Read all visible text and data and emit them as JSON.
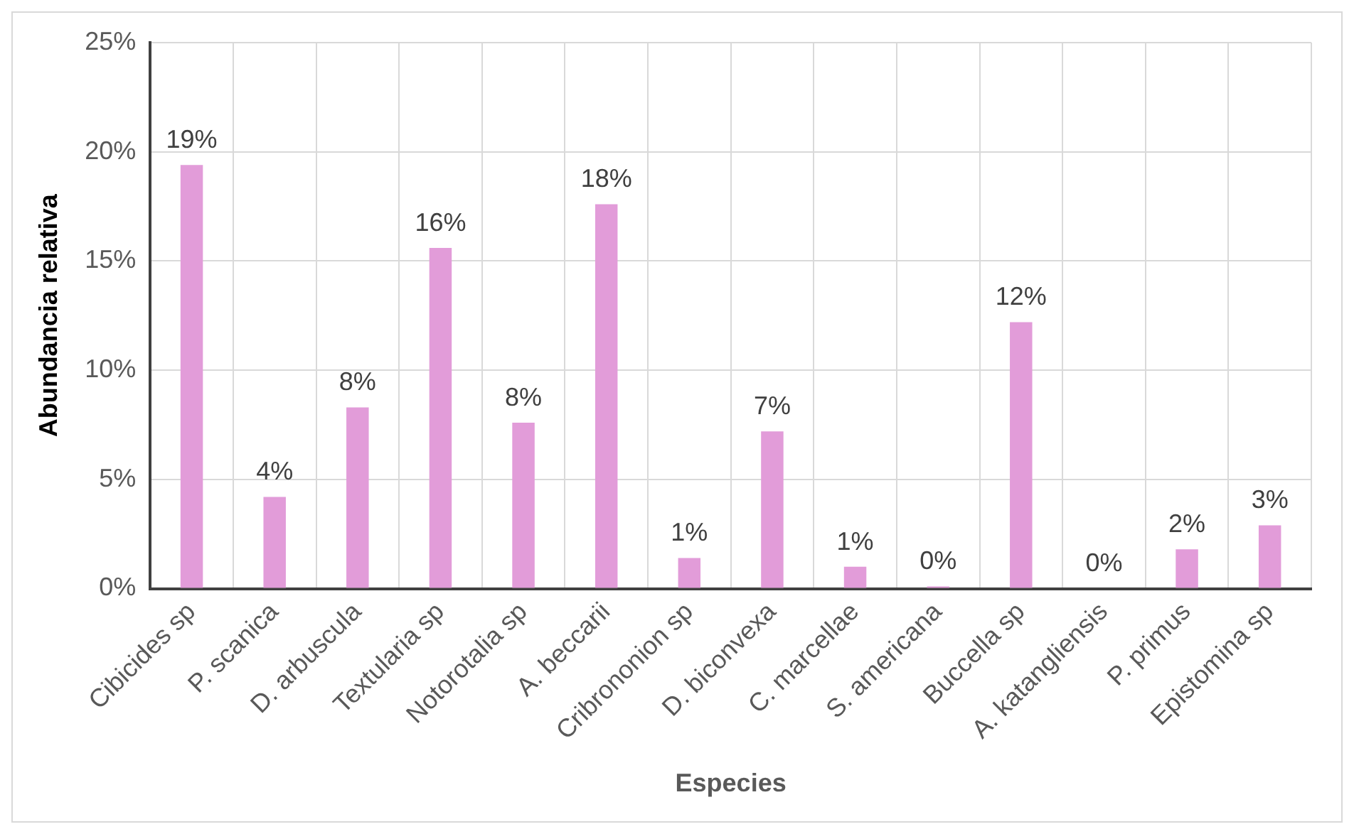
{
  "chart_data": {
    "type": "bar",
    "xlabel": "Especies",
    "ylabel": "Abundancia relativa",
    "categories": [
      "Cibicides sp",
      "P. scanica",
      "D. arbuscula",
      "Textularia sp",
      "Notorotalia sp",
      "A. beccarii",
      "Cribrononion sp",
      "D. biconvexa",
      "C. marcellae",
      "S. americana",
      "Buccella sp",
      "A. katangliensis",
      "P. primus",
      "Epistomina sp"
    ],
    "values": [
      19.4,
      4.2,
      8.3,
      15.6,
      7.6,
      17.6,
      1.4,
      7.2,
      1.0,
      0.1,
      12.2,
      0,
      1.8,
      2.9
    ],
    "value_labels": [
      "19%",
      "4%",
      "8%",
      "16%",
      "8%",
      "18%",
      "1%",
      "7%",
      "1%",
      "0%",
      "12%",
      "0%",
      "2%",
      "3%"
    ],
    "color": "#e29cd9",
    "ylim": [
      0,
      25
    ],
    "yticks": [
      {
        "value": 0,
        "label": "0%"
      },
      {
        "value": 5,
        "label": "5%"
      },
      {
        "value": 10,
        "label": "10%"
      },
      {
        "value": 15,
        "label": "15%"
      },
      {
        "value": 20,
        "label": "20%"
      },
      {
        "value": 25,
        "label": "25%"
      }
    ],
    "grid": true,
    "legend": false
  }
}
